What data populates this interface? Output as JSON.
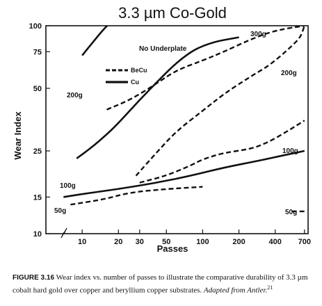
{
  "chart_data": {
    "type": "line",
    "title": "3.3 µm Co-Gold",
    "xlabel": "Passes",
    "ylabel": "Wear Index",
    "xscale": "log",
    "yscale": "log",
    "xlim": [
      5,
      750
    ],
    "ylim": [
      10,
      100
    ],
    "xticks": [
      "10",
      "20",
      "30",
      "50",
      "100",
      "200",
      "400",
      "700"
    ],
    "yticks": [
      "10",
      "15",
      "25",
      "50",
      "75",
      "100"
    ],
    "legend": {
      "position": "upper-left",
      "entries": [
        {
          "label": "BeCu",
          "style": "dashed"
        },
        {
          "label": "Cu",
          "style": "solid"
        }
      ]
    },
    "annotations": {
      "no_underplate": "No Underplate"
    },
    "series": [
      {
        "name": "Cu 200g",
        "substrate": "Cu",
        "label": "200g",
        "style": "solid",
        "points": [
          [
            10,
            72
          ],
          [
            12,
            82
          ],
          [
            15,
            96
          ],
          [
            17,
            103
          ]
        ]
      },
      {
        "name": "Cu 100g",
        "substrate": "Cu",
        "label": "100g",
        "style": "solid",
        "points": [
          [
            9,
            23
          ],
          [
            12,
            26
          ],
          [
            16,
            30
          ],
          [
            20,
            34
          ],
          [
            30,
            44
          ],
          [
            45,
            56
          ],
          [
            60,
            66
          ],
          [
            80,
            75
          ],
          [
            100,
            80
          ],
          [
            130,
            84
          ],
          [
            160,
            86
          ],
          [
            200,
            88
          ]
        ]
      },
      {
        "name": "Cu 50g",
        "substrate": "Cu",
        "label": "50g",
        "style": "solid",
        "points": [
          [
            7,
            15
          ],
          [
            10,
            15.5
          ],
          [
            20,
            16.4
          ],
          [
            40,
            17.5
          ],
          [
            80,
            19
          ],
          [
            150,
            20.8
          ],
          [
            300,
            22.5
          ],
          [
            500,
            24
          ],
          [
            700,
            25
          ]
        ]
      },
      {
        "name": "BeCu 300g",
        "substrate": "BeCu",
        "label": "300g",
        "style": "dashed",
        "points": [
          [
            16,
            39.5
          ],
          [
            25,
            44
          ],
          [
            40,
            52
          ],
          [
            60,
            61
          ],
          [
            100,
            68
          ],
          [
            150,
            75
          ],
          [
            250,
            86
          ],
          [
            400,
            95
          ],
          [
            700,
            100
          ]
        ]
      },
      {
        "name": "BeCu 200g",
        "substrate": "BeCu",
        "label": "200g",
        "style": "dashed",
        "points": [
          [
            28,
            19
          ],
          [
            40,
            24
          ],
          [
            60,
            31
          ],
          [
            100,
            39
          ],
          [
            150,
            47
          ],
          [
            250,
            57
          ],
          [
            350,
            64
          ],
          [
            450,
            72
          ],
          [
            550,
            80
          ],
          [
            650,
            88
          ],
          [
            700,
            100
          ]
        ]
      },
      {
        "name": "BeCu 100g",
        "substrate": "BeCu",
        "label": "100g",
        "style": "dashed",
        "points": [
          [
            30,
            17.6
          ],
          [
            50,
            19
          ],
          [
            80,
            21.3
          ],
          [
            100,
            22.8
          ],
          [
            150,
            24.5
          ],
          [
            250,
            25.5
          ],
          [
            350,
            27.5
          ],
          [
            500,
            31
          ],
          [
            700,
            35
          ]
        ]
      },
      {
        "name": "BeCu 50g",
        "substrate": "BeCu",
        "label": "50g",
        "style": "dashed",
        "points": [
          [
            8,
            13.8
          ],
          [
            15,
            14.6
          ],
          [
            25,
            15.8
          ],
          [
            50,
            16.4
          ],
          [
            100,
            16.8
          ]
        ]
      },
      {
        "name": "BeCu 50g (late)",
        "substrate": "BeCu",
        "label": "50g",
        "style": "dashed",
        "points": [
          [
            550,
            12.8
          ],
          [
            700,
            12.8
          ]
        ]
      }
    ]
  },
  "labels": {
    "cu_200g": "200g",
    "cu_100g": "100g",
    "cu_50g": "50g",
    "becu_300g": "300g",
    "becu_200g": "200g",
    "becu_100g": "100g",
    "becu_50g": "50g"
  },
  "caption": {
    "figure": "FIGURE 3.16",
    "text": "Wear index vs. number of passes to illustrate the comparative durability of 3.3 µm cobalt hard gold over copper and beryllium copper substrates.",
    "adapted": "Adapted from Antler.",
    "ref": "21"
  }
}
